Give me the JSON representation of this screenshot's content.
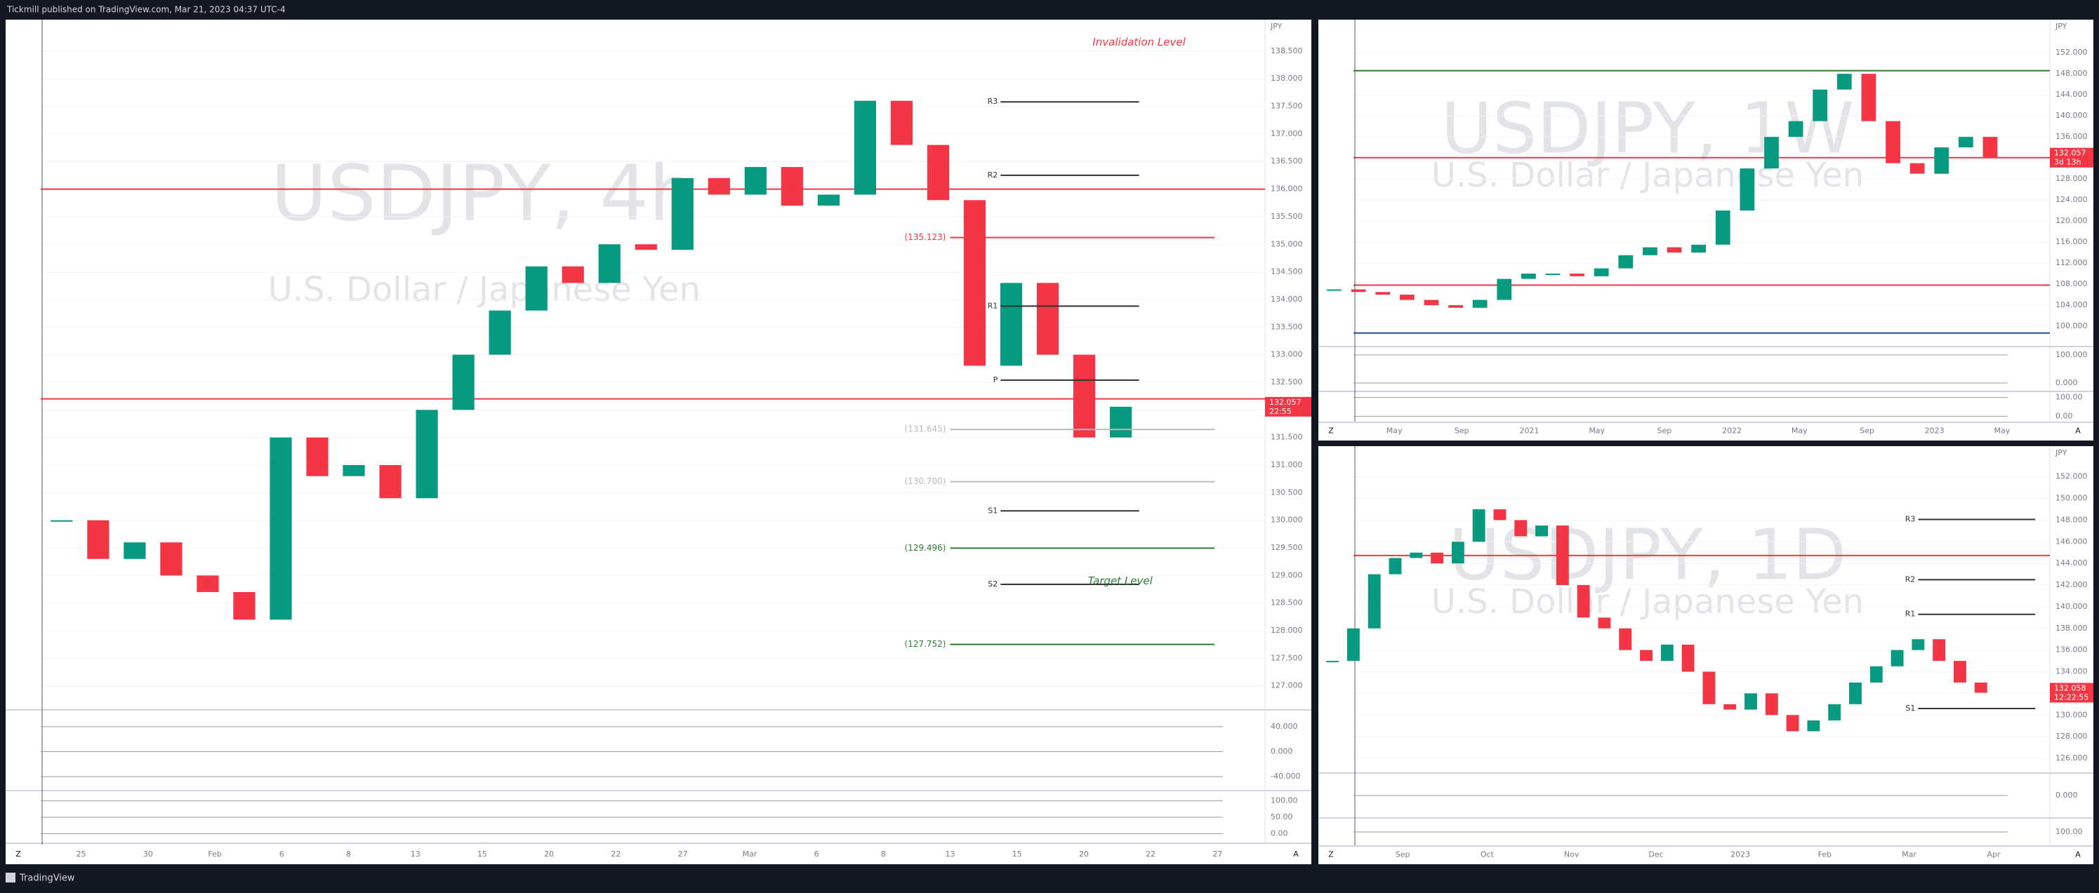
{
  "header": {
    "text": "Tickmill published on TradingView.com, Mar 21, 2023 04:37 UTC-4"
  },
  "footer": {
    "brand": "TradingView"
  },
  "panels": [
    {
      "symbol": "USDJPY, 4h",
      "description": "U.S. Dollar / Japanese Yen",
      "currency": "JPY",
      "last_price": 132.057,
      "countdown": "22:55",
      "ylim": [
        126.59,
        139.07
      ],
      "yticks": [
        {
          "value": 127,
          "label": "127.000"
        },
        {
          "value": 127.5,
          "label": "127.500"
        },
        {
          "value": 128,
          "label": "128.000"
        },
        {
          "value": 128.5,
          "label": "128.500"
        },
        {
          "value": 129,
          "label": "129.000"
        },
        {
          "value": 129.5,
          "label": "129.500"
        },
        {
          "value": 130,
          "label": "130.000"
        },
        {
          "value": 130.5,
          "label": "130.500"
        },
        {
          "value": 131,
          "label": "131.000"
        },
        {
          "value": 131.5,
          "label": "131.500"
        },
        {
          "value": 132,
          "label": "132.000"
        },
        {
          "value": 132.5,
          "label": "132.500"
        },
        {
          "value": 133,
          "label": "133.000"
        },
        {
          "value": 133.5,
          "label": "133.500"
        },
        {
          "value": 134,
          "label": "134.000"
        },
        {
          "value": 134.5,
          "label": "134.500"
        },
        {
          "value": 135,
          "label": "135.000"
        },
        {
          "value": 135.5,
          "label": "135.500"
        },
        {
          "value": 136,
          "label": "136.000"
        },
        {
          "value": 136.5,
          "label": "136.500"
        },
        {
          "value": 137,
          "label": "137.000"
        },
        {
          "value": 137.5,
          "label": "137.500"
        },
        {
          "value": 138,
          "label": "138.000"
        },
        {
          "value": 138.5,
          "label": "138.500"
        }
      ],
      "x_labels": [
        "25",
        "30",
        "Feb",
        "6",
        "8",
        "13",
        "15",
        "20",
        "22",
        "27",
        "Mar",
        "6",
        "8",
        "13",
        "15",
        "20",
        "22",
        "27"
      ],
      "close": [
        130.0,
        129.3,
        129.6,
        129.0,
        128.7,
        128.2,
        131.5,
        130.8,
        131.0,
        130.4,
        132.0,
        133.0,
        133.8,
        134.6,
        134.3,
        135.0,
        134.9,
        136.2,
        135.9,
        136.4,
        135.7,
        135.9,
        137.6,
        136.8,
        135.8,
        132.8,
        134.3,
        133.0,
        131.5,
        132.057
      ],
      "horizontal_lines": [
        {
          "value": 136.0,
          "color": "#f23645"
        },
        {
          "value": 132.2,
          "color": "#f23645"
        }
      ],
      "levels": [
        {
          "label": "R3",
          "value": 137.58,
          "color": "#333333"
        },
        {
          "label": "R2",
          "value": 136.25,
          "color": "#333333"
        },
        {
          "label": "R1",
          "value": 133.88,
          "color": "#333333"
        },
        {
          "label": "P",
          "value": 132.54,
          "color": "#333333"
        },
        {
          "label": "S1",
          "value": 130.17,
          "color": "#333333"
        },
        {
          "label": "S2",
          "value": 128.84,
          "color": "#333333"
        }
      ],
      "price_levels": [
        {
          "value": 135.123,
          "label": "(135.123)",
          "color": "#f23645"
        },
        {
          "value": 131.645,
          "label": "(131.645)",
          "color": "#bbbbbb"
        },
        {
          "value": 130.7,
          "label": "(130.700)",
          "color": "#bbbbbb"
        },
        {
          "value": 129.496,
          "label": "(129.496)",
          "color": "#2e7d32"
        },
        {
          "value": 127.752,
          "label": "(127.752)",
          "color": "#2e7d32"
        }
      ],
      "annotations": [
        "Invalidation Level",
        "Target Level"
      ],
      "oscillators": [
        [
          {
            "value": 40,
            "label": "40.000"
          },
          {
            "value": 0,
            "label": "0.000"
          },
          {
            "value": -40,
            "label": "-40.000"
          }
        ],
        [
          {
            "value": 100,
            "label": "100.00"
          },
          {
            "value": 50,
            "label": "50.00"
          },
          {
            "value": 0,
            "label": "0.00"
          }
        ]
      ],
      "buttons": [
        "Z",
        "A"
      ]
    },
    {
      "symbol": "USDJPY, 1W",
      "description": "U.S. Dollar / Japanese Yen",
      "currency": "JPY",
      "last_price": 132.057,
      "countdown": "3d 13h",
      "ylim": [
        96.4,
        158.3
      ],
      "yticks": [
        {
          "value": 100,
          "label": "100.000"
        },
        {
          "value": 104,
          "label": "104.000"
        },
        {
          "value": 108,
          "label": "108.000"
        },
        {
          "value": 112,
          "label": "112.000"
        },
        {
          "value": 116,
          "label": "116.000"
        },
        {
          "value": 120,
          "label": "120.000"
        },
        {
          "value": 124,
          "label": "124.000"
        },
        {
          "value": 128,
          "label": "128.000"
        },
        {
          "value": 132,
          "label": "132.000"
        },
        {
          "value": 136,
          "label": "136.000"
        },
        {
          "value": 140,
          "label": "140.000"
        },
        {
          "value": 144,
          "label": "144.000"
        },
        {
          "value": 148,
          "label": "148.000"
        },
        {
          "value": 152,
          "label": "152.000"
        }
      ],
      "x_labels": [
        "May",
        "Sep",
        "2021",
        "May",
        "Sep",
        "2022",
        "May",
        "Sep",
        "2023",
        "May"
      ],
      "close": [
        107.0,
        106.5,
        106.0,
        105.0,
        104.0,
        103.5,
        105.0,
        109.0,
        110.0,
        110.0,
        109.5,
        111.0,
        113.5,
        115.0,
        114.0,
        115.5,
        122.0,
        130.0,
        136.0,
        139.0,
        145.0,
        148.0,
        139.0,
        131.0,
        129.0,
        134.0,
        136.0,
        132.057
      ],
      "horizontal_lines": [
        {
          "value": 148.6,
          "color": "#2e7d32"
        },
        {
          "value": 107.8,
          "color": "#f23645"
        },
        {
          "value": 98.7,
          "color": "#1e4fa3"
        },
        {
          "value": 132.057,
          "color": "#f23645"
        }
      ],
      "levels": [],
      "price_levels": [],
      "annotations": [],
      "oscillators": [
        [
          {
            "value": 100,
            "label": "100.000"
          },
          {
            "value": 0,
            "label": "0.000"
          }
        ],
        [
          {
            "value": 100,
            "label": "100.00"
          },
          {
            "value": 0,
            "label": "0.00"
          }
        ]
      ],
      "buttons": [
        "Z",
        "A"
      ]
    },
    {
      "symbol": "USDJPY, 1D",
      "description": "U.S. Dollar / Japanese Yen",
      "currency": "JPY",
      "last_price": 132.058,
      "countdown": "12:22:55",
      "ylim": [
        124.77,
        154.83
      ],
      "yticks": [
        {
          "value": 126,
          "label": "126.000"
        },
        {
          "value": 128,
          "label": "128.000"
        },
        {
          "value": 130,
          "label": "130.000"
        },
        {
          "value": 132,
          "label": "132.000"
        },
        {
          "value": 134,
          "label": "134.000"
        },
        {
          "value": 136,
          "label": "136.000"
        },
        {
          "value": 138,
          "label": "138.000"
        },
        {
          "value": 140,
          "label": "140.000"
        },
        {
          "value": 142,
          "label": "142.000"
        },
        {
          "value": 144,
          "label": "144.000"
        },
        {
          "value": 146,
          "label": "146.000"
        },
        {
          "value": 148,
          "label": "148.000"
        },
        {
          "value": 150,
          "label": "150.000"
        },
        {
          "value": 152,
          "label": "152.000"
        }
      ],
      "x_labels": [
        "Sep",
        "Oct",
        "Nov",
        "Dec",
        "2023",
        "Feb",
        "Mar",
        "Apr"
      ],
      "close": [
        135.0,
        138.0,
        143.0,
        144.5,
        145.0,
        144.0,
        146.0,
        149.0,
        148.0,
        146.5,
        147.5,
        142.0,
        139.0,
        138.0,
        136.0,
        135.0,
        136.5,
        134.0,
        131.0,
        130.5,
        132.0,
        130.0,
        128.5,
        129.5,
        131.0,
        133.0,
        134.5,
        136.0,
        137.0,
        135.0,
        133.0,
        132.058
      ],
      "horizontal_lines": [
        {
          "value": 144.73,
          "color": "#f23645"
        }
      ],
      "levels": [
        {
          "label": "R3",
          "value": 148.06,
          "color": "#333333"
        },
        {
          "label": "R2",
          "value": 142.5,
          "color": "#333333"
        },
        {
          "label": "R1",
          "value": 139.3,
          "color": "#333333"
        },
        {
          "label": "S1",
          "value": 130.6,
          "color": "#333333"
        }
      ],
      "price_levels": [],
      "annotations": [],
      "oscillators": [
        [
          {
            "value": 0,
            "label": "0.000"
          }
        ],
        [
          {
            "value": 100,
            "label": "100.00"
          }
        ]
      ],
      "buttons": [
        "Z",
        "A"
      ]
    }
  ]
}
